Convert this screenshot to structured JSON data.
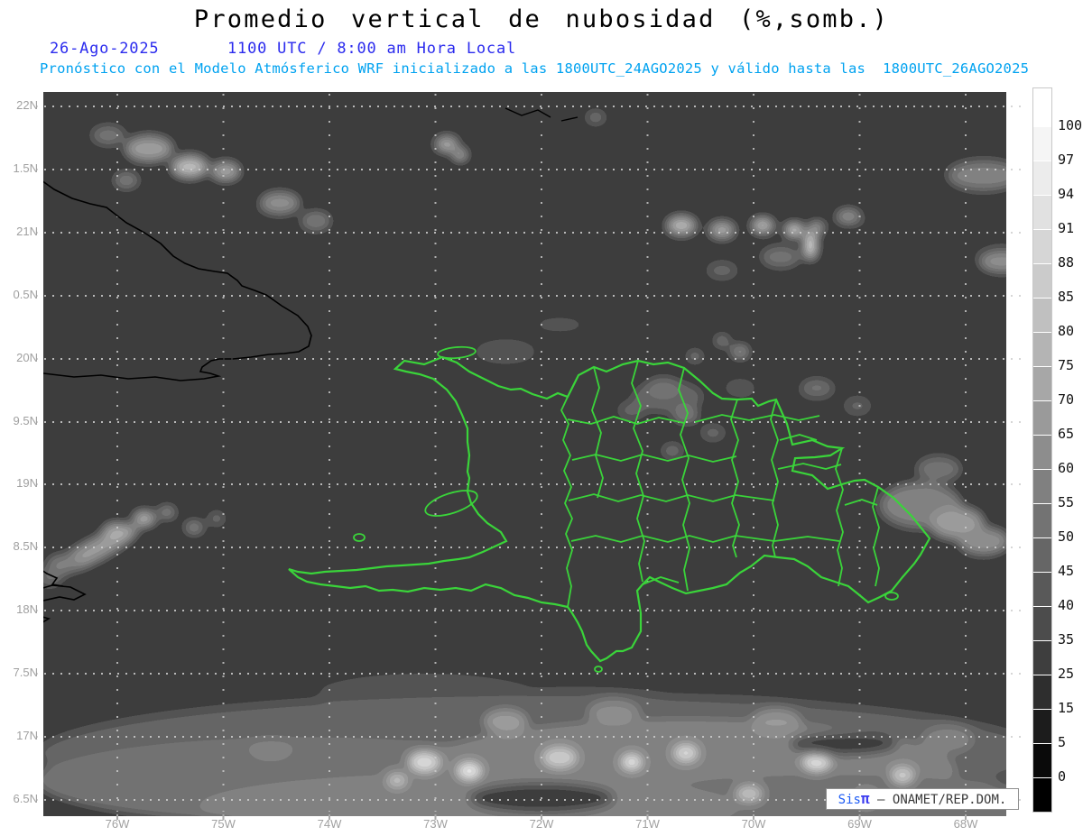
{
  "header": {
    "title": "Promedio vertical de nubosidad (%,somb.)",
    "date": "26-Ago-2025",
    "time": "1100 UTC / 8:00 am Hora Local",
    "forecast": "Pronóstico con el Modelo Atmósferico WRF inicializado a las 1800UTC_24AGO2025 y válido hasta las  1800UTC_26AGO2025"
  },
  "axes": {
    "lat_labels": [
      "22N",
      "1.5N",
      "21N",
      "0.5N",
      "20N",
      "9.5N",
      "19N",
      "8.5N",
      "18N",
      "7.5N",
      "17N",
      "6.5N"
    ],
    "lon_labels": [
      "76W",
      "75W",
      "74W",
      "73W",
      "72W",
      "71W",
      "70W",
      "69W",
      "68W"
    ]
  },
  "colorbar": {
    "labels": [
      "100",
      "97",
      "94",
      "91",
      "88",
      "85",
      "80",
      "75",
      "70",
      "65",
      "60",
      "55",
      "50",
      "45",
      "40",
      "35",
      "25",
      "15",
      "5",
      "0"
    ],
    "segment_colors": [
      "#ffffff",
      "#f5f5f5",
      "#ececec",
      "#e1e1e1",
      "#d6d6d6",
      "#cbcbcb",
      "#c0c0c0",
      "#b4b4b4",
      "#a7a7a7",
      "#9a9a9a",
      "#8d8d8d",
      "#808080",
      "#737373",
      "#666666",
      "#595959",
      "#4c4c4c",
      "#3e3e3e",
      "#2e2e2e",
      "#1c1c1c",
      "#0a0a0a",
      "#000000"
    ]
  },
  "watermark": {
    "brand_sis": "Sis",
    "brand_pi": "π",
    "org": " – ONAMET/REP.DOM."
  },
  "colors": {
    "date_blue": "#2b2bee",
    "forecast_cyan": "#00a2f0",
    "axis_gray": "#a0a0a0",
    "province_green": "#3ad43a",
    "coastline_black": "#000000",
    "grid_dot": "#cfcfcf"
  }
}
